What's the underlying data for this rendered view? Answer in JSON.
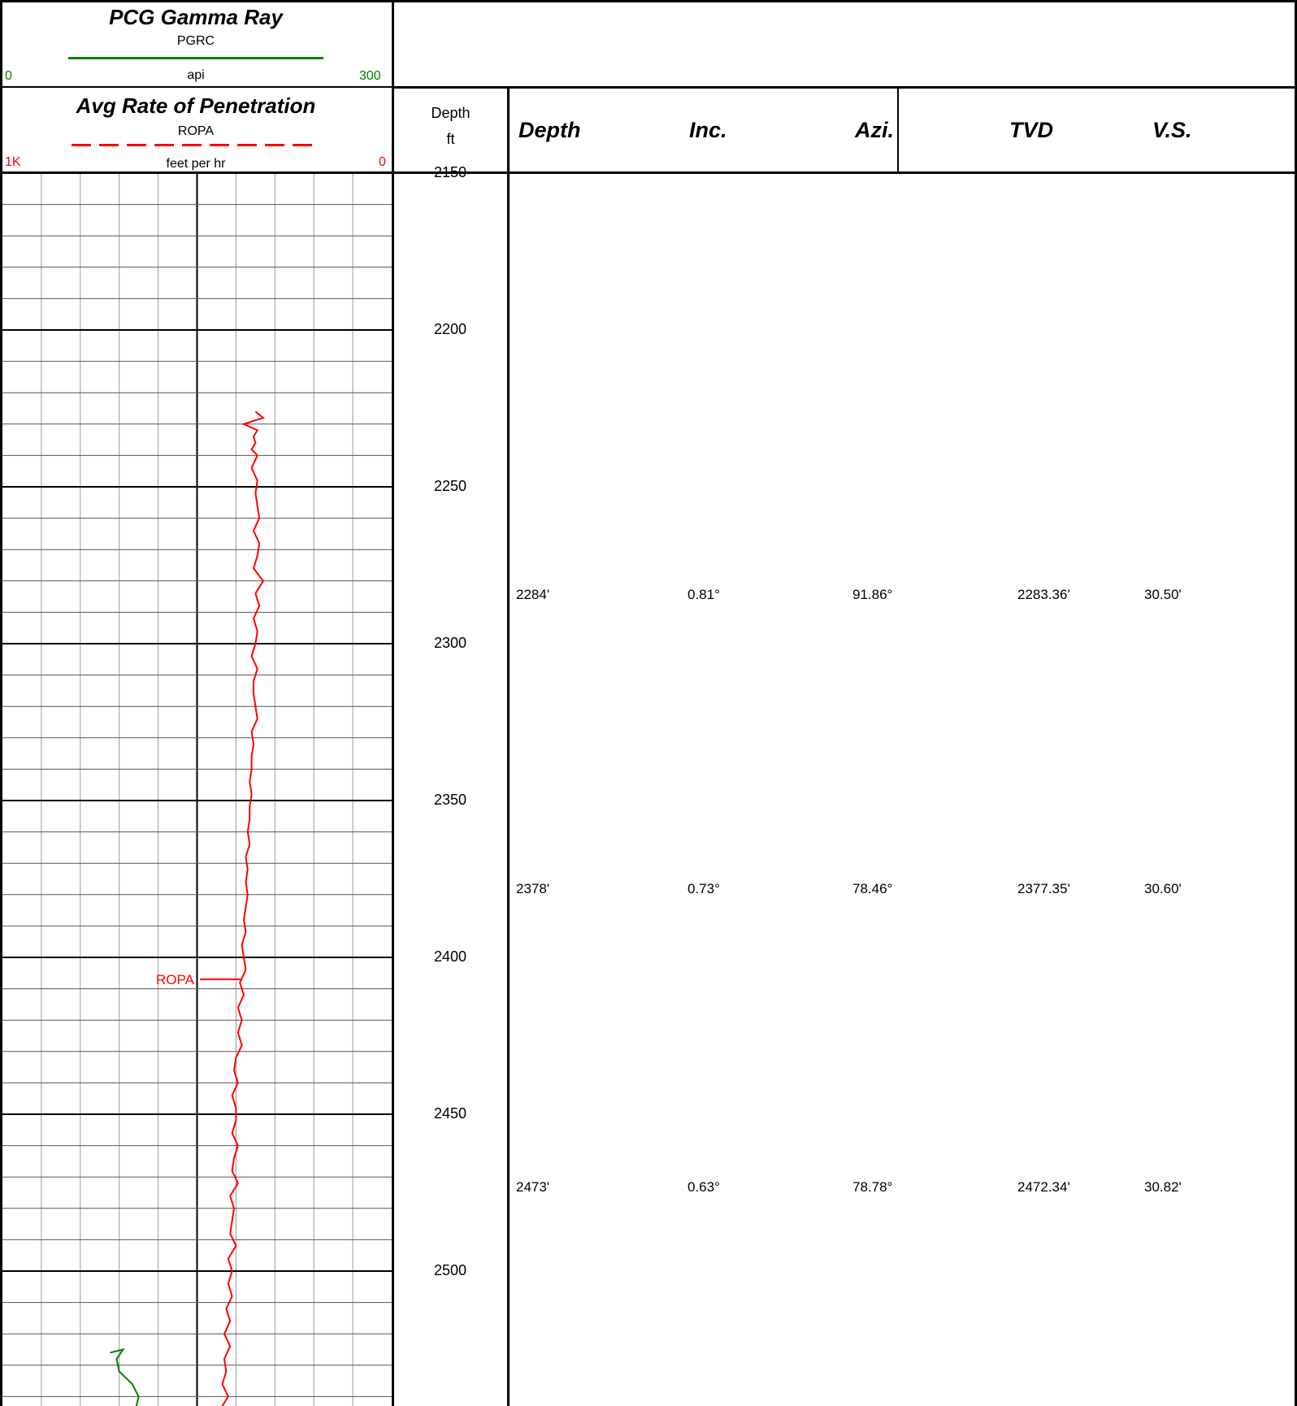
{
  "gamma_header": {
    "title": "PCG Gamma Ray",
    "mnemonic": "PGRC",
    "unit": "api",
    "scale_left": "0",
    "scale_right": "300",
    "color": "#008000"
  },
  "rop_header": {
    "title": "Avg Rate of Penetration",
    "mnemonic": "ROPA",
    "unit": "feet per hr",
    "scale_left": "1K",
    "scale_right": "0",
    "color": "#ff0000"
  },
  "depth_header": {
    "label": "Depth",
    "unit": "ft"
  },
  "survey_table": {
    "columns": [
      "Depth",
      "Inc.",
      "Azi.",
      "TVD",
      "V.S."
    ],
    "rows": [
      [
        "2284'",
        "0.81°",
        "91.86°",
        "2283.36'",
        "30.50'"
      ],
      [
        "2378'",
        "0.73°",
        "78.46°",
        "2377.35'",
        "30.60'"
      ],
      [
        "2473'",
        "0.63°",
        "78.78°",
        "2472.34'",
        "30.82'"
      ]
    ]
  },
  "chart_data": {
    "type": "line",
    "depth_labels": [
      "2150",
      "2200",
      "2250",
      "2300",
      "2350",
      "2400",
      "2450",
      "2500"
    ],
    "depth_range": [
      2150,
      2545
    ],
    "grid": true,
    "curve_label": "ROPA",
    "series": [
      {
        "name": "ROPA",
        "color": "#ff0000",
        "x_scale": [
          1000,
          0
        ],
        "x": [
          350,
          330,
          380,
          345,
          355,
          350,
          360,
          345,
          360,
          345,
          350,
          345,
          340,
          355,
          340,
          345,
          355,
          330,
          350,
          340,
          355,
          345,
          350,
          360,
          345,
          355,
          355,
          350,
          345,
          360,
          355,
          360,
          360,
          365,
          360,
          365,
          365,
          370,
          365,
          375,
          370,
          375,
          370,
          375,
          380,
          375,
          385,
          380,
          375,
          390,
          380,
          395,
          385,
          395,
          385,
          400,
          405,
          395,
          410,
          400,
          400,
          410,
          395,
          405,
          410,
          395,
          415,
          405,
          410,
          415,
          400,
          420,
          410,
          420,
          410,
          425,
          415,
          430,
          415,
          430,
          425,
          435,
          420,
          440,
          430,
          445,
          435,
          450,
          440,
          455,
          445,
          460,
          445,
          460,
          450,
          465,
          455,
          450,
          470,
          455,
          465,
          470,
          455
        ],
        "y": [
          2226,
          2228,
          2230,
          2232,
          2234,
          2236,
          2238,
          2240,
          2244,
          2248,
          2252,
          2256,
          2260,
          2264,
          2268,
          2272,
          2276,
          2280,
          2284,
          2288,
          2292,
          2296,
          2300,
          2304,
          2308,
          2312,
          2316,
          2320,
          2324,
          2328,
          2332,
          2336,
          2340,
          2344,
          2348,
          2352,
          2356,
          2360,
          2364,
          2368,
          2372,
          2376,
          2380,
          2384,
          2388,
          2392,
          2396,
          2400,
          2404,
          2408,
          2412,
          2416,
          2420,
          2424,
          2428,
          2432,
          2436,
          2440,
          2444,
          2448,
          2452,
          2456,
          2460,
          2464,
          2468,
          2472,
          2476,
          2480,
          2484,
          2488,
          2492,
          2496,
          2500,
          2504,
          2508,
          2512,
          2516,
          2520,
          2524,
          2528,
          2532,
          2536,
          2540,
          2544,
          2545,
          2545,
          2545,
          2545,
          2545,
          2545,
          2545,
          2545,
          2545,
          2545,
          2545,
          2545,
          2545,
          2545,
          2545,
          2545,
          2545,
          2545,
          2545
        ]
      },
      {
        "name": "PGRC",
        "color": "#008000",
        "x_scale": [
          0,
          300
        ],
        "x": [
          83,
          93,
          88,
          90,
          100,
          105,
          102
        ],
        "y": [
          2526,
          2525,
          2528,
          2532,
          2536,
          2540,
          2545
        ]
      }
    ]
  }
}
